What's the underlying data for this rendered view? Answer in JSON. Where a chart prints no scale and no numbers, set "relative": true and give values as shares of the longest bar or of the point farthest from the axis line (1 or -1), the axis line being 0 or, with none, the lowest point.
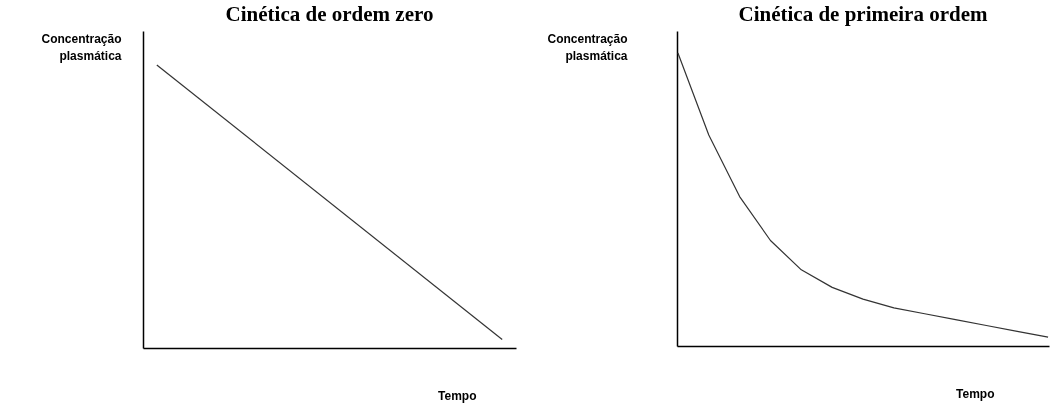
{
  "chart_data": [
    {
      "type": "line",
      "title": "Cinética de ordem zero",
      "xlabel": "Tempo",
      "ylabel": "Concentração plasmática",
      "relative": true,
      "categories": [
        null,
        null
      ],
      "values": [
        1,
        0.03
      ],
      "color": "#333333",
      "grid": false
    },
    {
      "type": "line",
      "title": "Cinética de primeira ordem",
      "xlabel": "Tempo",
      "ylabel": "Concentração plasmática",
      "relative": true,
      "categories": [
        null,
        null,
        null,
        null,
        null,
        null,
        null,
        null,
        null,
        null,
        null,
        null,
        null
      ],
      "values": [
        1,
        0.72,
        0.51,
        0.36,
        0.26,
        0.2,
        0.16,
        0.13,
        0.11,
        0.09,
        0.07,
        0.05,
        0.03
      ],
      "color": "#333333",
      "grid": false
    }
  ]
}
